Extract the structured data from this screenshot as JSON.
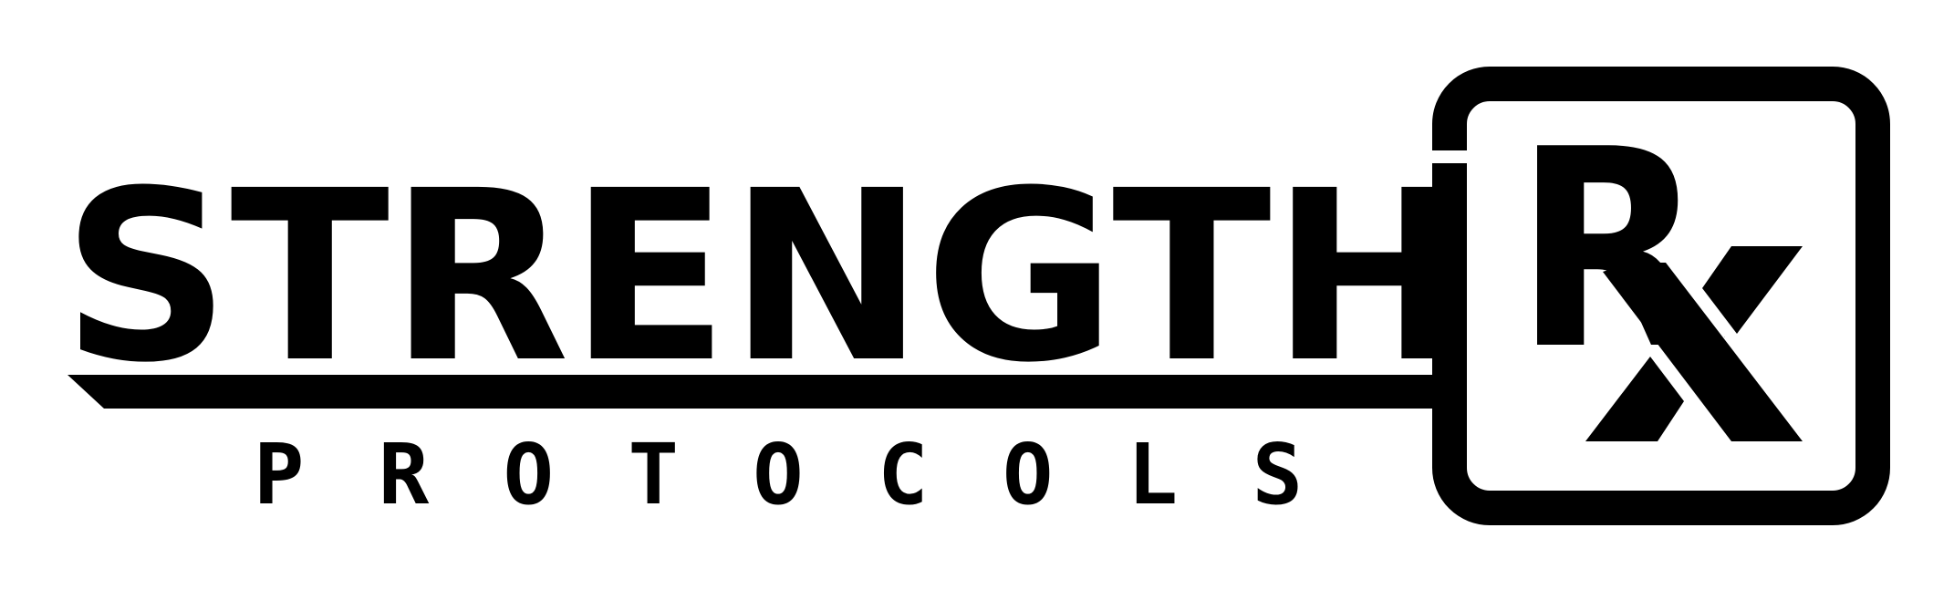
{
  "logo": {
    "word_main": "STRENGTH",
    "letter_r": "R",
    "letter_x": "x",
    "word_sub": "PROTOCOLS",
    "colors": {
      "ink": "#000000",
      "background": "#ffffff"
    }
  }
}
